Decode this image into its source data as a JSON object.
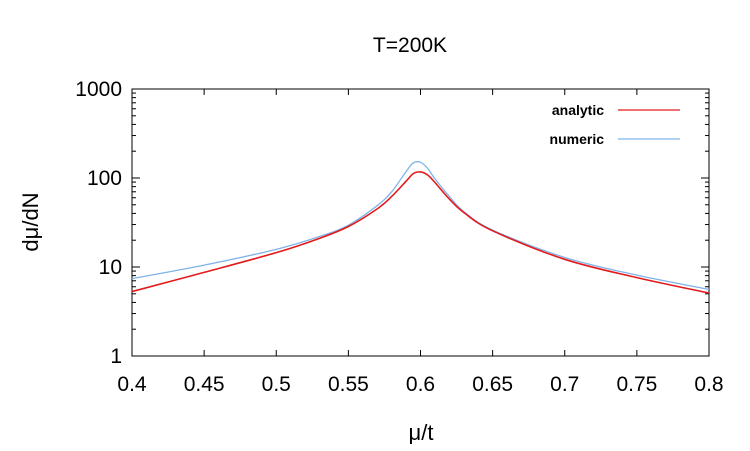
{
  "chart_data": {
    "type": "line",
    "title": "T=200K",
    "xlabel": "μ/t",
    "ylabel": "dμ/dN",
    "xlim": [
      0.4,
      0.8
    ],
    "ylim": [
      1,
      1000
    ],
    "yscale": "log",
    "grid": false,
    "legend_position": "top-right",
    "x_ticks": [
      "0.4",
      "0.45",
      "0.5",
      "0.55",
      "0.6",
      "0.65",
      "0.7",
      "0.75",
      "0.8"
    ],
    "y_ticks": [
      "1",
      "10",
      "100",
      "1000"
    ],
    "series": [
      {
        "name": "analytic",
        "color": "#e31a1c",
        "x": [
          0.4,
          0.45,
          0.5,
          0.53,
          0.55,
          0.57,
          0.58,
          0.59,
          0.595,
          0.6,
          0.605,
          0.61,
          0.62,
          0.63,
          0.65,
          0.7,
          0.75,
          0.8
        ],
        "y": [
          5.3,
          8.7,
          14.5,
          21,
          28.5,
          45,
          62,
          92,
          112,
          117,
          108,
          89,
          58,
          41,
          25.5,
          12.2,
          7.6,
          5.1
        ]
      },
      {
        "name": "numeric",
        "color": "#7fb3e8",
        "x": [
          0.4,
          0.45,
          0.5,
          0.53,
          0.55,
          0.57,
          0.58,
          0.59,
          0.595,
          0.6,
          0.605,
          0.61,
          0.62,
          0.63,
          0.65,
          0.7,
          0.75,
          0.8
        ],
        "y": [
          7.4,
          10.5,
          15.8,
          22,
          29.5,
          49,
          70,
          118,
          148,
          150,
          128,
          98,
          62,
          42,
          26,
          12.8,
          8.1,
          5.6
        ]
      }
    ]
  }
}
